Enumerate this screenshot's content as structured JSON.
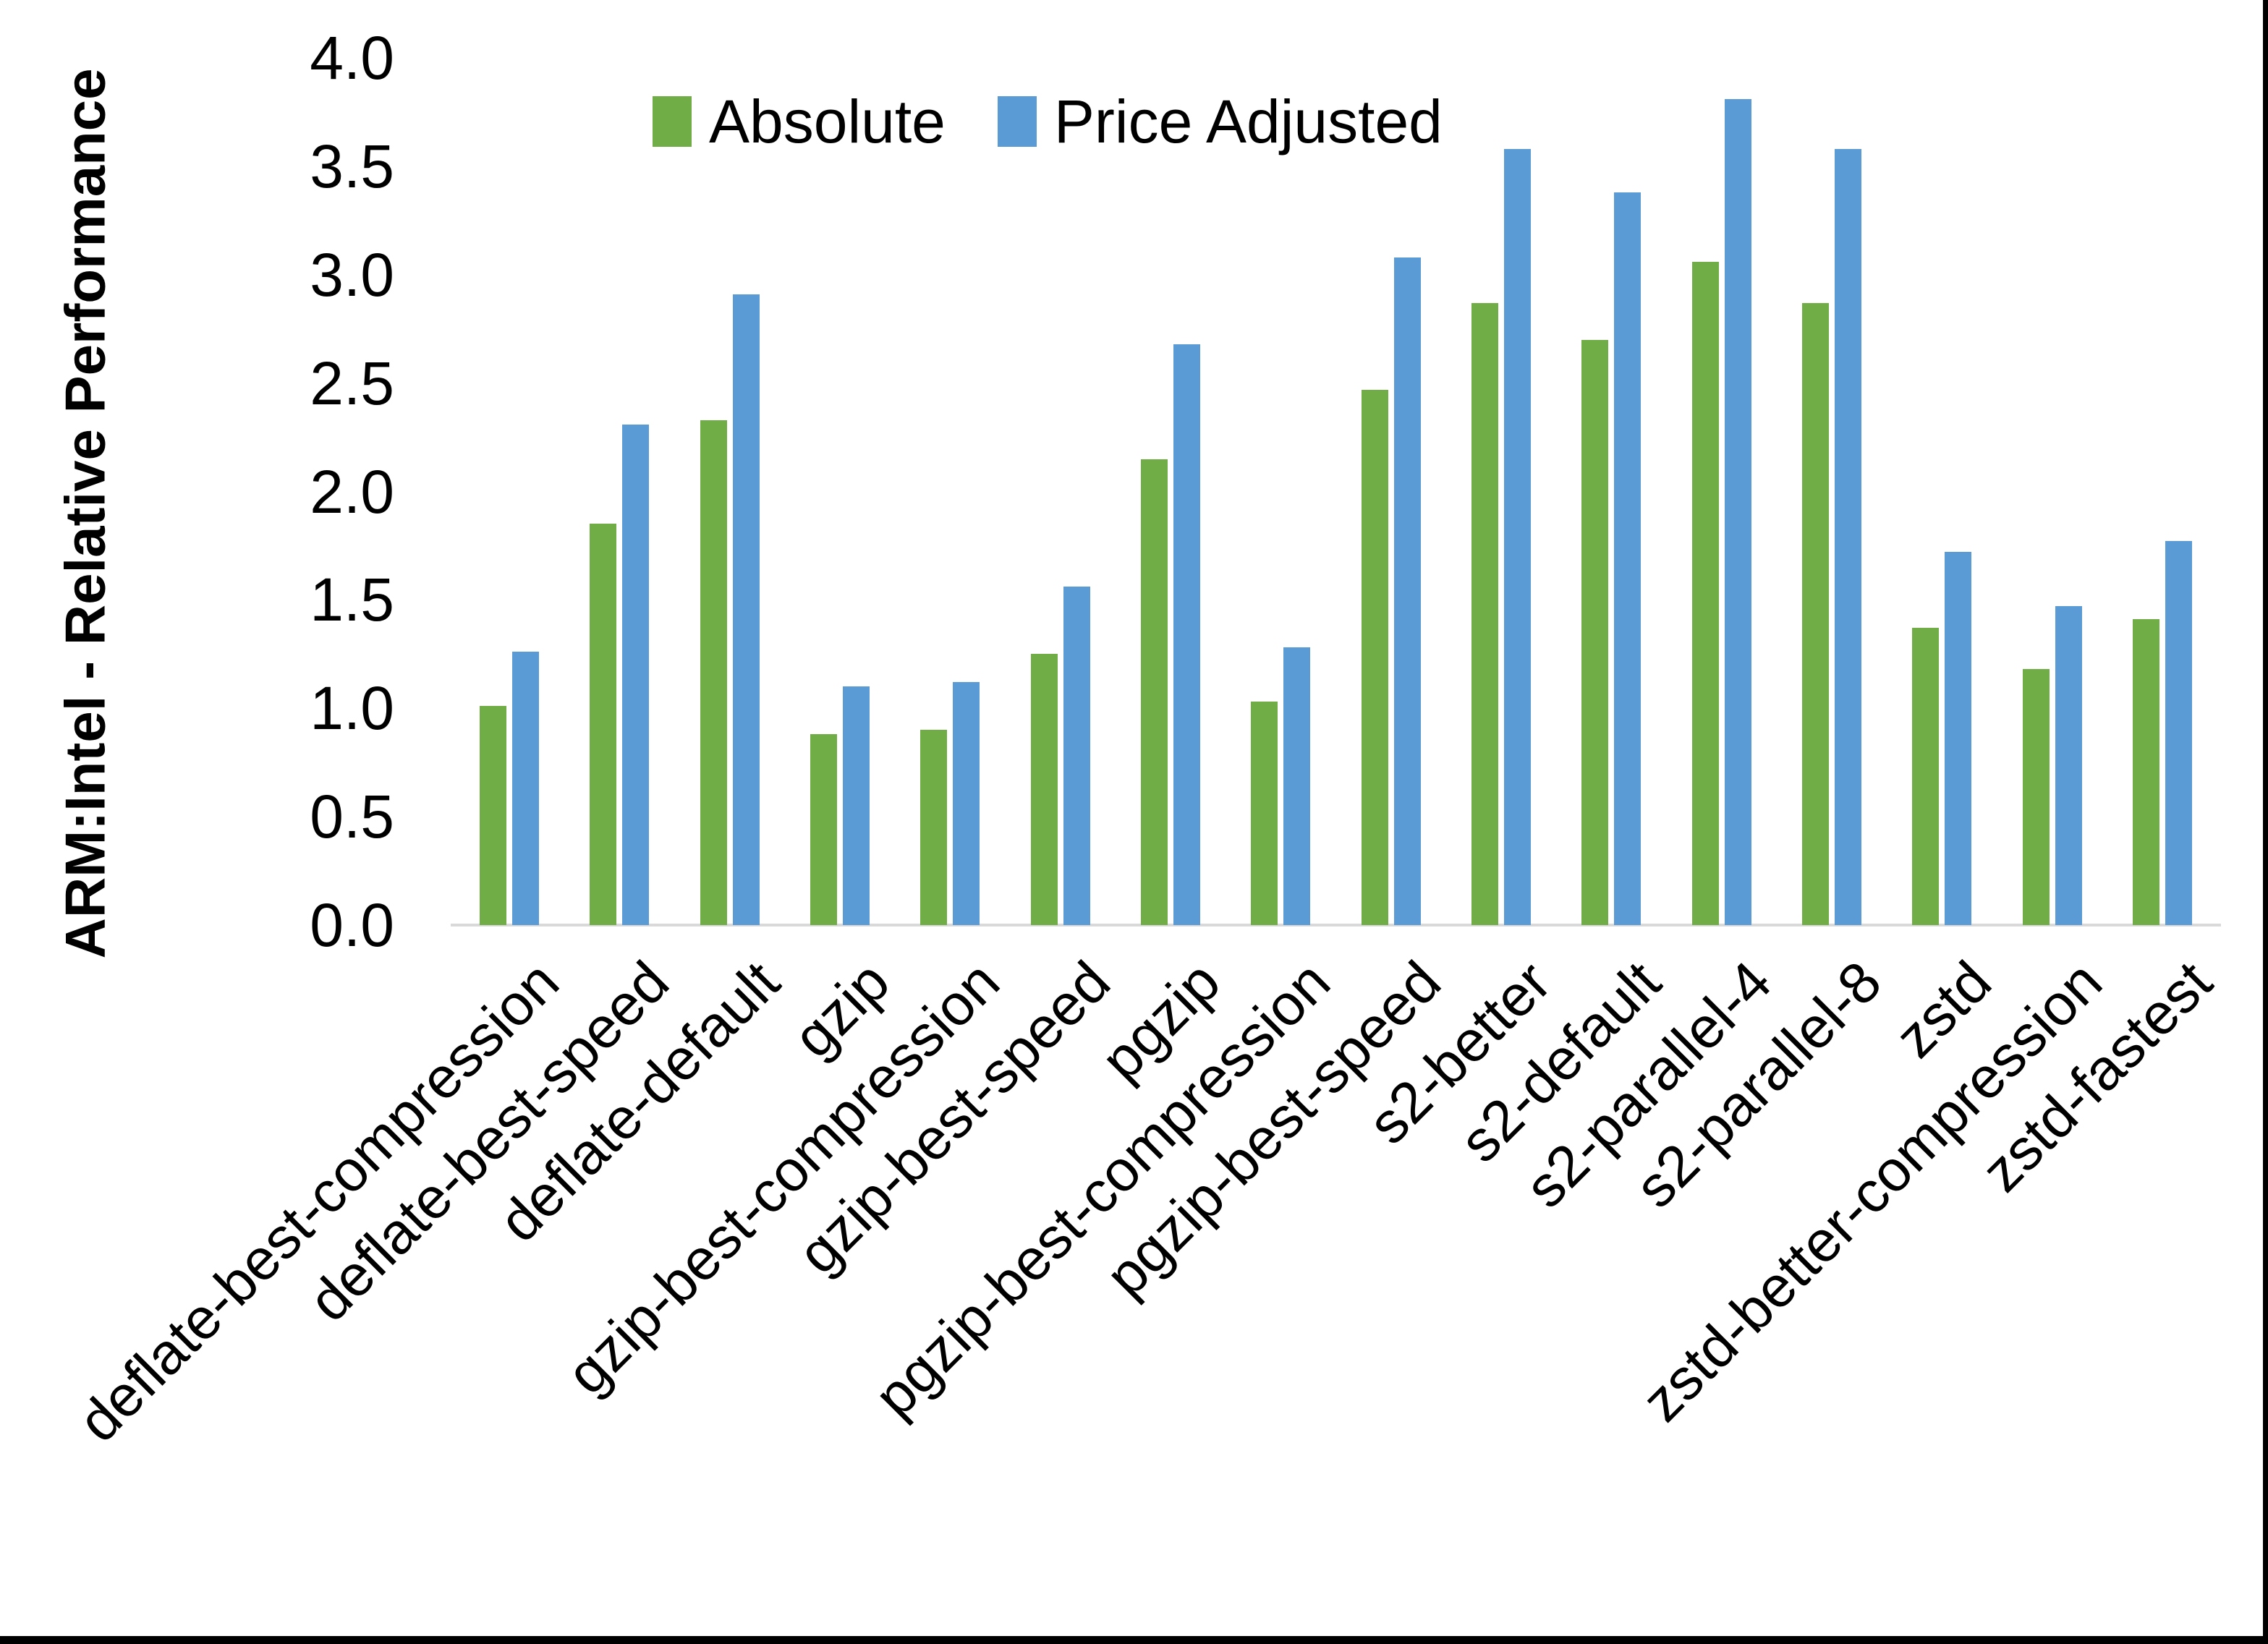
{
  "chart_data": {
    "type": "bar",
    "title": "",
    "ylabel": "ARM:Intel - Relative Performance",
    "xlabel": "",
    "ylim": [
      0.0,
      4.0
    ],
    "ytick_interval": 0.5,
    "ytick_labels": [
      "0.0",
      "0.5",
      "1.0",
      "1.5",
      "2.0",
      "2.5",
      "3.0",
      "3.5",
      "4.0"
    ],
    "grid": false,
    "legend_position": "top-center",
    "categories": [
      "deflate-best-compression",
      "deflate-best-speed",
      "deflate-default",
      "gzip",
      "gzip-best-compression",
      "gzip-best-speed",
      "pgzip",
      "pgzip-best-compression",
      "pgzip-best-speed",
      "s2-better",
      "s2-default",
      "s2-parallel-4",
      "s2-parallel-8",
      "zstd",
      "zstd-better-compression",
      "zstd-fastest"
    ],
    "series": [
      {
        "name": "Absolute",
        "color": "#70AD47",
        "values": [
          1.01,
          1.85,
          2.33,
          0.88,
          0.9,
          1.25,
          2.15,
          1.03,
          2.47,
          2.87,
          2.7,
          3.06,
          2.87,
          1.37,
          1.18,
          1.41
        ]
      },
      {
        "name": "Price Adjusted",
        "color": "#5B9BD5",
        "values": [
          1.26,
          2.31,
          2.91,
          1.1,
          1.12,
          1.56,
          2.68,
          1.28,
          3.08,
          3.58,
          3.38,
          3.81,
          3.58,
          1.72,
          1.47,
          1.77
        ]
      }
    ],
    "axis_line_color": "#D9D9D9",
    "text_color": "#000000"
  },
  "legend": {
    "items": [
      {
        "label": "Absolute",
        "color": "#70AD47"
      },
      {
        "label": "Price Adjusted",
        "color": "#5B9BD5"
      }
    ]
  }
}
